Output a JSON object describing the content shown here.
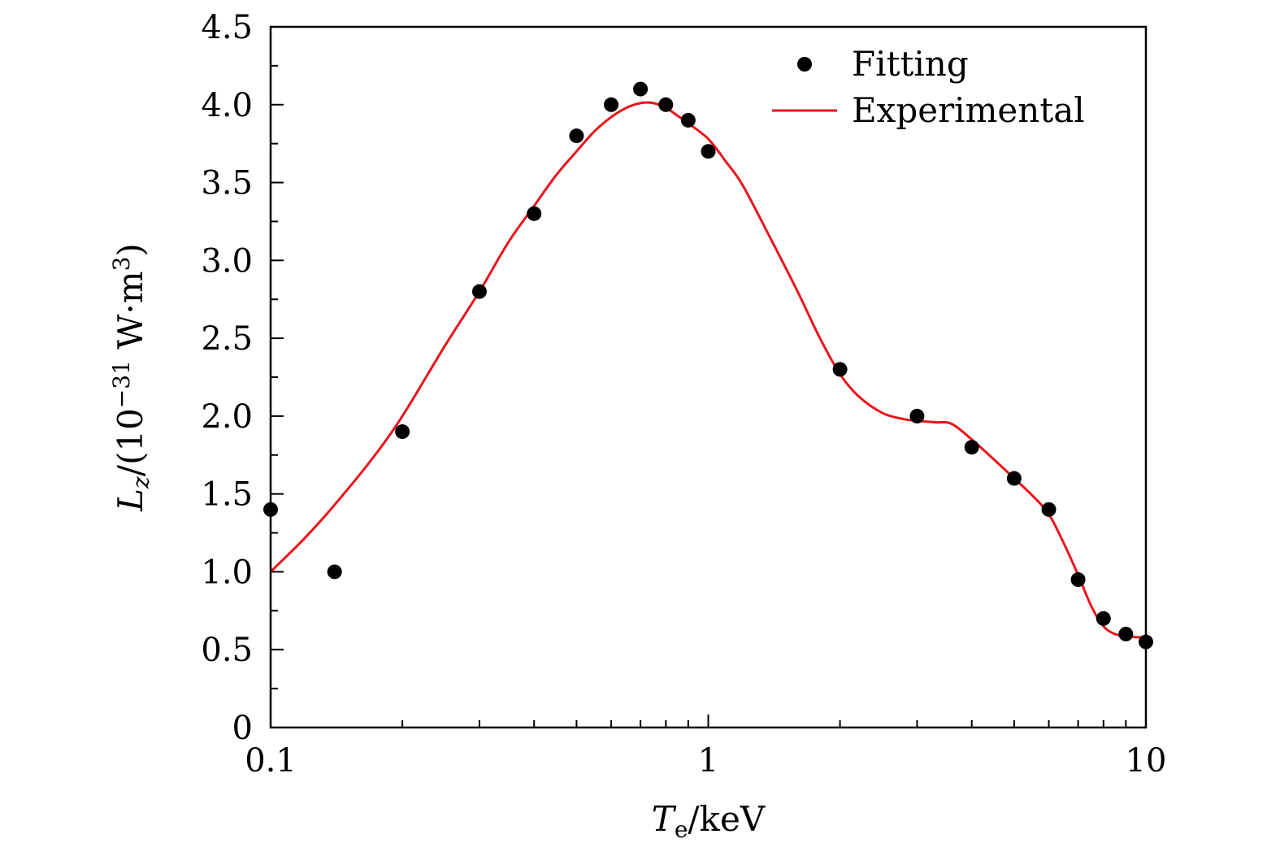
{
  "chart_data": {
    "type": "scatter+line",
    "title": "",
    "xlabel": {
      "main": "T",
      "sub": "e",
      "unit": "/keV"
    },
    "ylabel": {
      "main": "L",
      "sub": "z",
      "prefix": "/(10",
      "exp": "−31",
      "suffix": " W·m",
      "exp2": "3",
      "close": ")"
    },
    "xscale": "log",
    "xlim": [
      0.1,
      10
    ],
    "ylim": [
      0,
      4.5
    ],
    "xticks": [
      {
        "value": 0.1,
        "label": "0.1"
      },
      {
        "value": 1,
        "label": "1"
      },
      {
        "value": 10,
        "label": "10"
      }
    ],
    "yticks": [
      {
        "value": 0,
        "label": "0"
      },
      {
        "value": 0.5,
        "label": "0.5"
      },
      {
        "value": 1.0,
        "label": "1.0"
      },
      {
        "value": 1.5,
        "label": "1.5"
      },
      {
        "value": 2.0,
        "label": "2.0"
      },
      {
        "value": 2.5,
        "label": "2.5"
      },
      {
        "value": 3.0,
        "label": "3.0"
      },
      {
        "value": 3.5,
        "label": "3.5"
      },
      {
        "value": 4.0,
        "label": "4.0"
      },
      {
        "value": 4.5,
        "label": "4.5"
      }
    ],
    "legend_position": "top-right",
    "series": [
      {
        "name": "Fitting",
        "kind": "points",
        "color": "#000000",
        "x": [
          0.1,
          0.14,
          0.2,
          0.3,
          0.4,
          0.5,
          0.6,
          0.7,
          0.8,
          0.9,
          1.0,
          2.0,
          3.0,
          4.0,
          5.0,
          6.0,
          7.0,
          8.0,
          9.0,
          10.0
        ],
        "y": [
          1.4,
          1.0,
          1.9,
          2.8,
          3.3,
          3.8,
          4.0,
          4.1,
          4.0,
          3.9,
          3.7,
          2.3,
          2.0,
          1.8,
          1.6,
          1.4,
          0.95,
          0.7,
          0.6,
          0.55
        ]
      },
      {
        "name": "Experimental",
        "kind": "line",
        "color": "#e8141c",
        "x": [
          0.1,
          0.12,
          0.14,
          0.17,
          0.2,
          0.25,
          0.3,
          0.35,
          0.4,
          0.45,
          0.5,
          0.55,
          0.6,
          0.65,
          0.7,
          0.75,
          0.8,
          0.85,
          0.9,
          1.0,
          1.1,
          1.2,
          1.4,
          1.6,
          1.8,
          2.0,
          2.2,
          2.5,
          2.8,
          3.0,
          3.3,
          3.6,
          4.0,
          4.5,
          5.0,
          5.5,
          6.0,
          6.5,
          7.0,
          7.5,
          8.0,
          8.5,
          9.0,
          9.5,
          10.0
        ],
        "y": [
          1.0,
          1.22,
          1.43,
          1.72,
          2.0,
          2.45,
          2.8,
          3.12,
          3.35,
          3.55,
          3.7,
          3.83,
          3.92,
          3.98,
          4.01,
          4.01,
          3.98,
          3.93,
          3.88,
          3.78,
          3.63,
          3.48,
          3.12,
          2.8,
          2.5,
          2.27,
          2.13,
          2.02,
          1.98,
          1.97,
          1.96,
          1.95,
          1.85,
          1.72,
          1.6,
          1.49,
          1.37,
          1.18,
          0.98,
          0.78,
          0.65,
          0.6,
          0.59,
          0.58,
          0.58
        ]
      }
    ]
  }
}
